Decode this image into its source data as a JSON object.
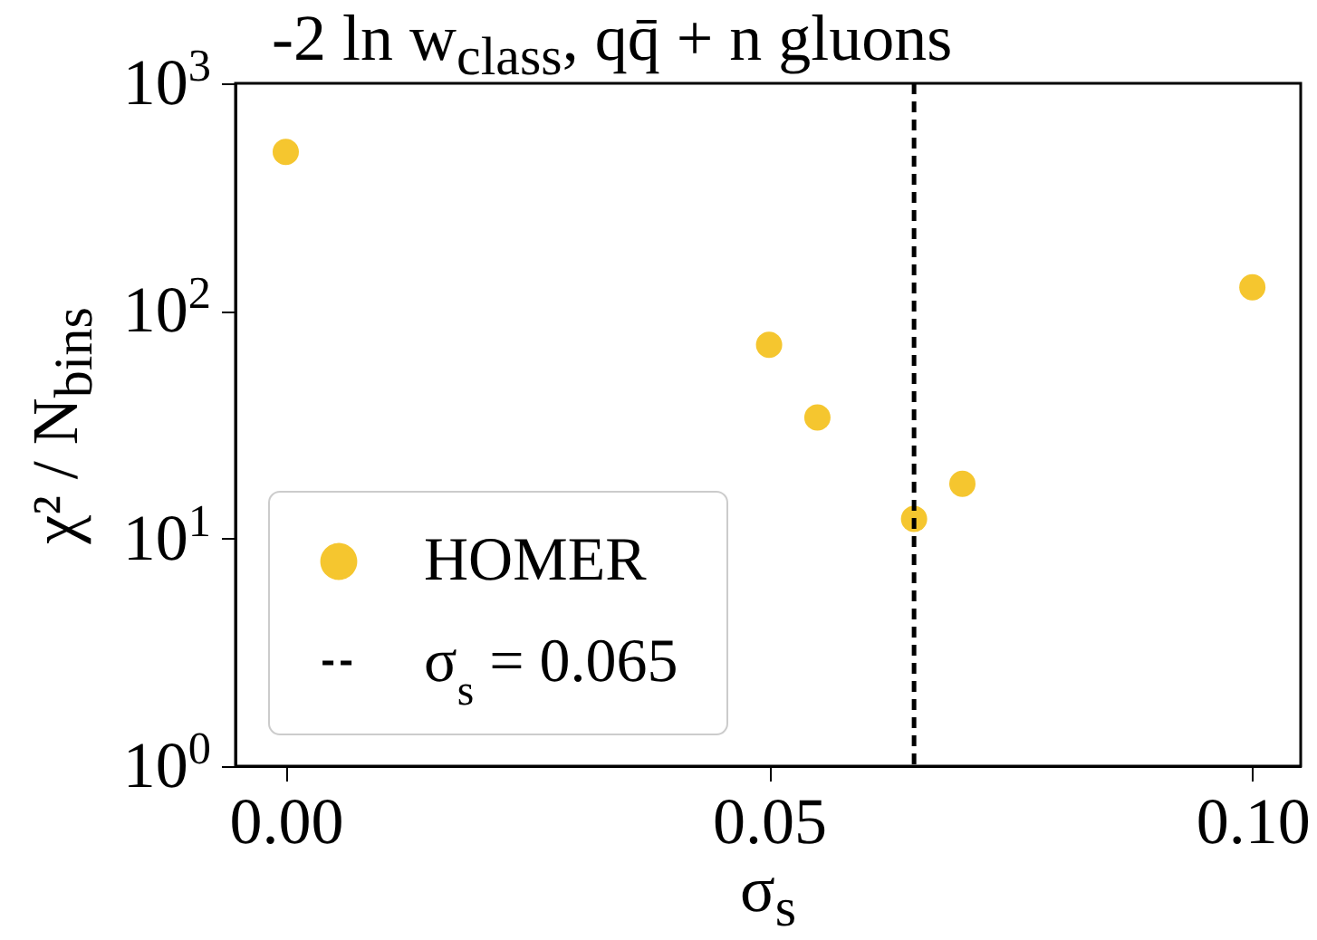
{
  "chart_data": {
    "type": "scatter",
    "title": "-2 ln w$_{class}$, qq̄ + n gluons",
    "xlabel": "σ$_{s}$",
    "ylabel": "χ² / N$_{bins}$",
    "x": [
      0,
      0.05,
      0.055,
      0.06,
      0.065,
      0.07,
      0.1
    ],
    "series": [
      {
        "name": "HOMER",
        "color": "#f5c62f",
        "values": [
          500,
          71,
          34,
          null,
          12.2,
          17.4,
          127
        ]
      }
    ],
    "xlim": [
      -0.0052,
      0.105
    ],
    "xticks": [
      {
        "value": 0,
        "label": "0.00"
      },
      {
        "value": 0.05,
        "label": "0.05"
      },
      {
        "value": 0.1,
        "label": "0.10"
      }
    ],
    "ylim": [
      1,
      1000
    ],
    "yticks": [
      {
        "value": 1,
        "label": "10$^{0}$"
      },
      {
        "value": 10,
        "label": "10$^{1}$"
      },
      {
        "value": 100,
        "label": "10$^{2}$"
      },
      {
        "value": 1000,
        "label": "10$^{3}$"
      }
    ],
    "log": "y",
    "marker": "circle",
    "legend": "bottom left",
    "ref_lines": [
      {
        "axis": "x",
        "value": 0.065,
        "label": "σ$_{s}$ = 0.065",
        "color": "#000000",
        "line_style": "dashed"
      }
    ]
  }
}
